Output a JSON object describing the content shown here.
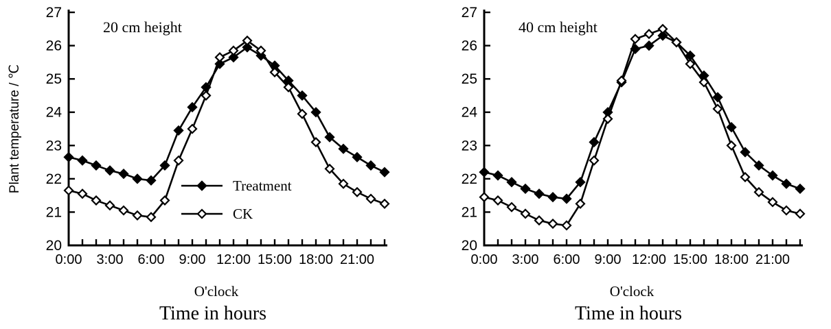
{
  "figure": {
    "y_axis_label": "Plant temperature / ℃",
    "x_axis_caption": "O'clock",
    "x_axis_title": "Time in hours",
    "colors": {
      "line": "#000000",
      "background": "#ffffff"
    }
  },
  "chart_data": [
    {
      "type": "line",
      "title": "20 cm height",
      "xlabel": "O'clock",
      "ylabel": "Plant temperature / ℃",
      "ylim": [
        20,
        27
      ],
      "y_ticks": [
        20,
        21,
        22,
        23,
        24,
        25,
        26,
        27
      ],
      "x_tick_step": 3,
      "x_tick_labels": [
        "0:00",
        "3:00",
        "6:00",
        "9:00",
        "12:00",
        "15:00",
        "18:00",
        "21:00"
      ],
      "hours": [
        0,
        1,
        2,
        3,
        4,
        5,
        6,
        7,
        8,
        9,
        10,
        11,
        12,
        13,
        14,
        15,
        16,
        17,
        18,
        19,
        20,
        21,
        22,
        23
      ],
      "grid": false,
      "legend_position": "inside-lower-center",
      "series": [
        {
          "name": "Treatment",
          "marker": "filled-diamond",
          "values": [
            22.65,
            22.55,
            22.4,
            22.25,
            22.15,
            22.0,
            21.95,
            22.4,
            23.45,
            24.15,
            24.75,
            25.45,
            25.65,
            25.95,
            25.7,
            25.4,
            24.95,
            24.5,
            24.0,
            23.25,
            22.9,
            22.65,
            22.4,
            22.2
          ]
        },
        {
          "name": "CK",
          "marker": "open-diamond",
          "values": [
            21.65,
            21.55,
            21.35,
            21.2,
            21.05,
            20.9,
            20.85,
            21.35,
            22.55,
            23.5,
            24.5,
            25.65,
            25.85,
            26.15,
            25.85,
            25.2,
            24.75,
            23.95,
            23.1,
            22.3,
            21.85,
            21.6,
            21.4,
            21.25
          ]
        }
      ]
    },
    {
      "type": "line",
      "title": "40 cm height",
      "xlabel": "O'clock",
      "ylabel": "Plant temperature / ℃",
      "ylim": [
        20,
        27
      ],
      "y_ticks": [
        20,
        21,
        22,
        23,
        24,
        25,
        26,
        27
      ],
      "x_tick_step": 3,
      "x_tick_labels": [
        "0:00",
        "3:00",
        "6:00",
        "9:00",
        "12:00",
        "15:00",
        "18:00",
        "21:00"
      ],
      "hours": [
        0,
        1,
        2,
        3,
        4,
        5,
        6,
        7,
        8,
        9,
        10,
        11,
        12,
        13,
        14,
        15,
        16,
        17,
        18,
        19,
        20,
        21,
        22,
        23
      ],
      "grid": false,
      "legend_position": "none",
      "series": [
        {
          "name": "Treatment",
          "marker": "filled-diamond",
          "values": [
            22.2,
            22.1,
            21.9,
            21.7,
            21.55,
            21.45,
            21.4,
            21.9,
            23.1,
            24.0,
            24.9,
            25.9,
            26.0,
            26.3,
            26.1,
            25.7,
            25.1,
            24.45,
            23.55,
            22.8,
            22.4,
            22.1,
            21.85,
            21.7
          ]
        },
        {
          "name": "CK",
          "marker": "open-diamond",
          "values": [
            21.45,
            21.35,
            21.15,
            20.95,
            20.75,
            20.65,
            20.6,
            21.25,
            22.55,
            23.8,
            24.95,
            26.2,
            26.35,
            26.5,
            26.1,
            25.45,
            24.9,
            24.1,
            23.0,
            22.05,
            21.6,
            21.3,
            21.05,
            20.95
          ]
        }
      ]
    }
  ]
}
